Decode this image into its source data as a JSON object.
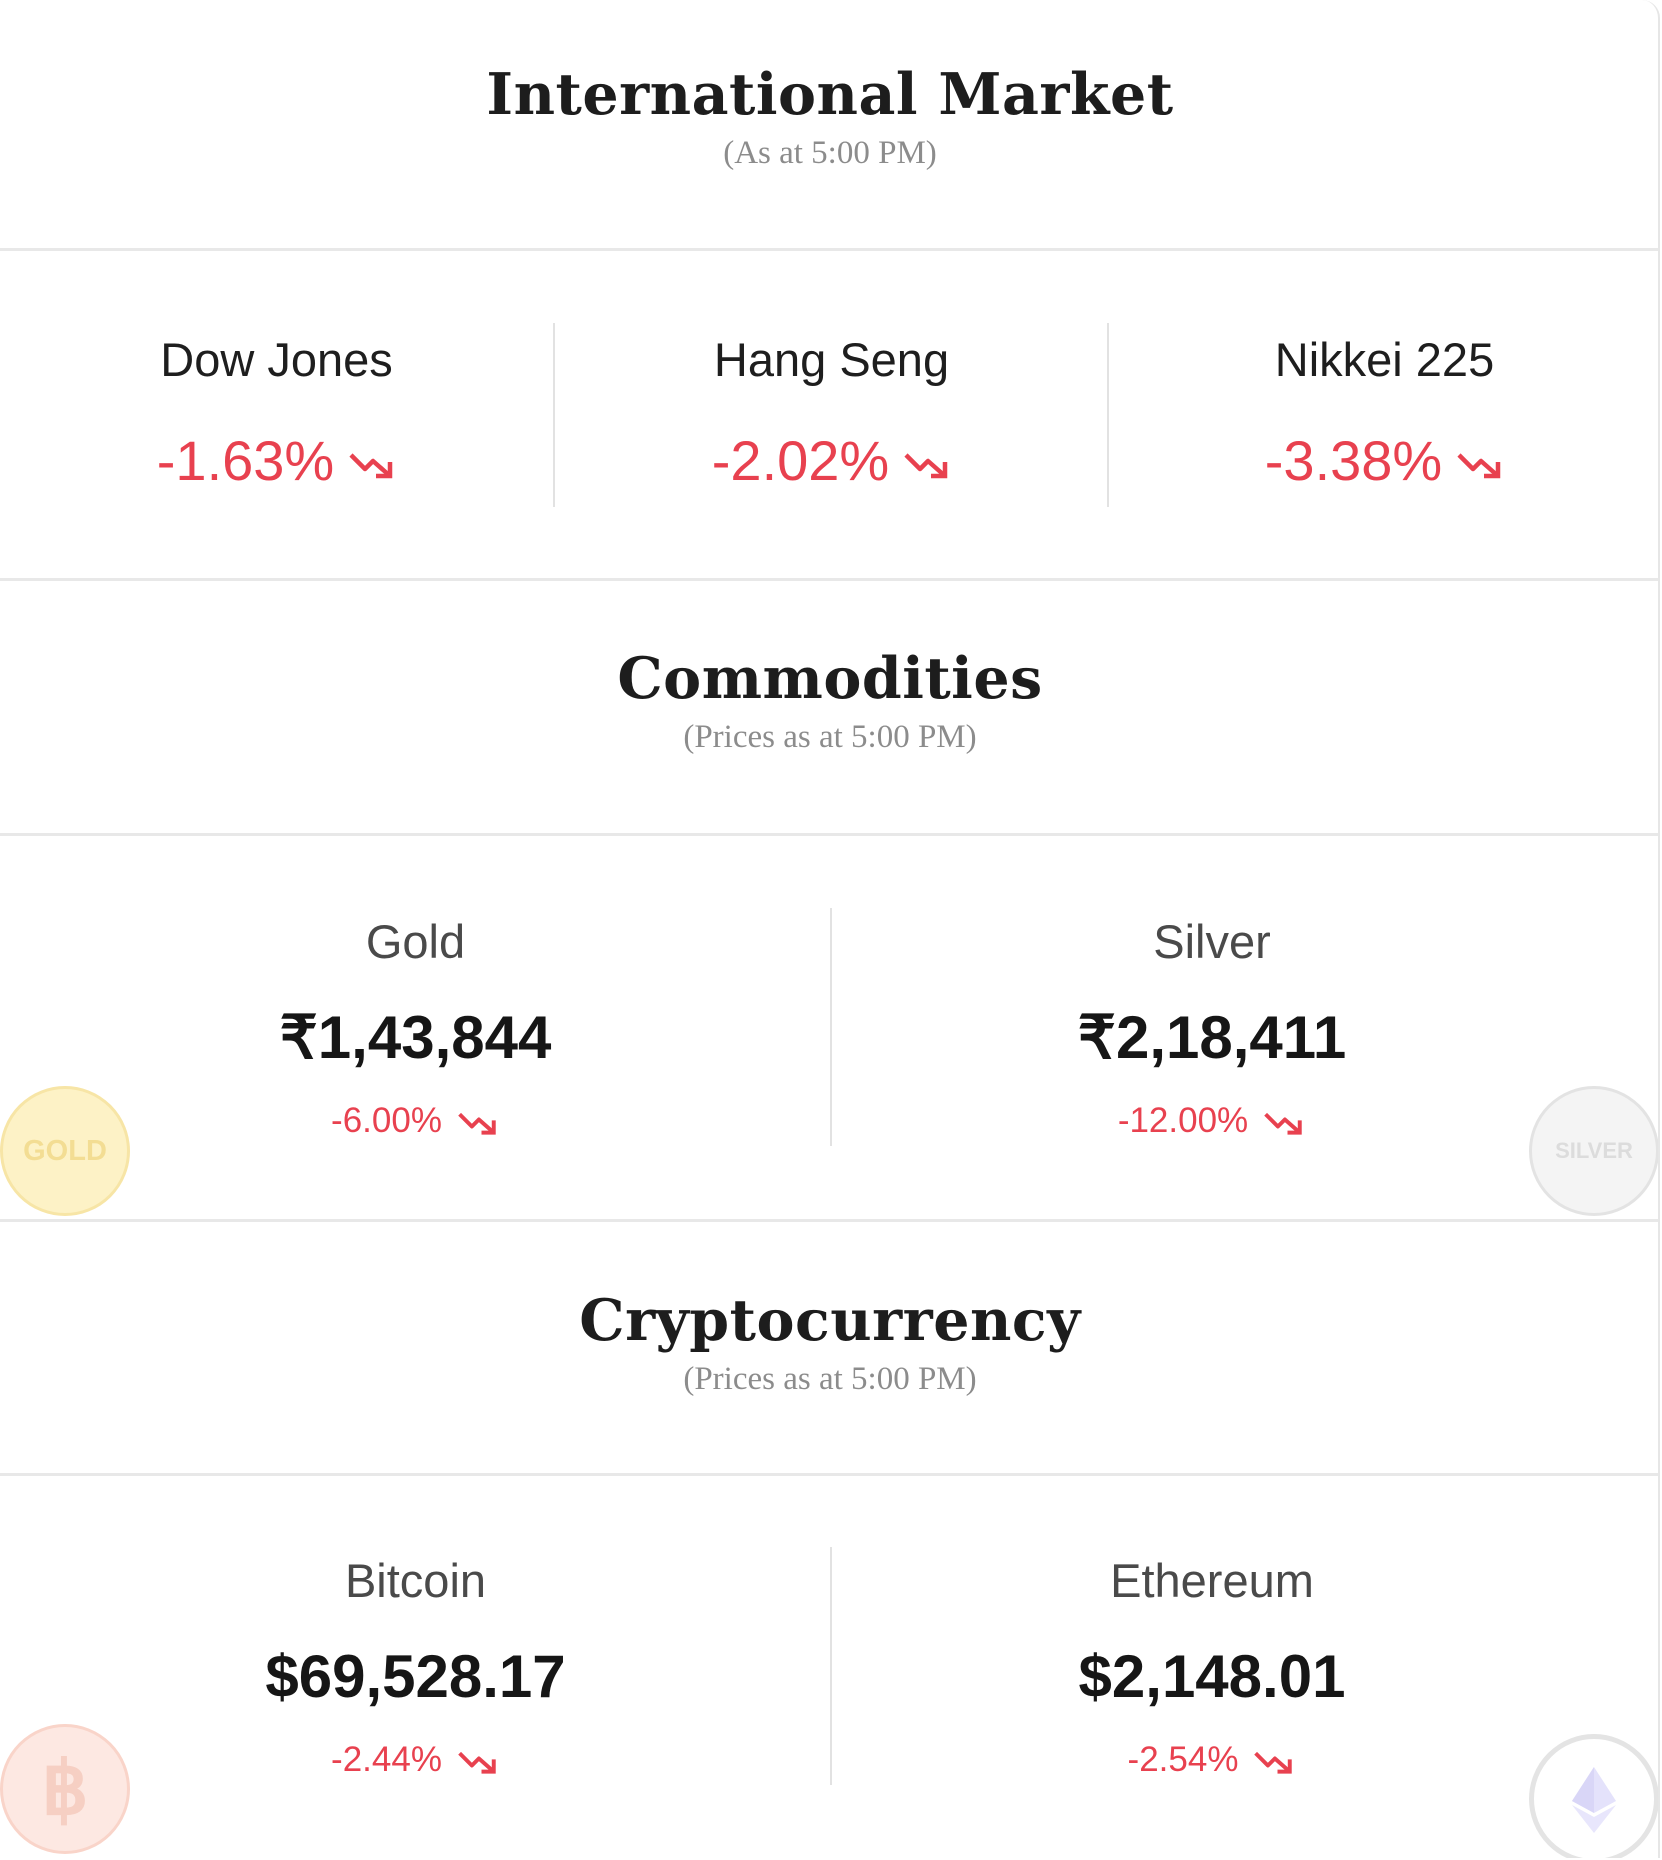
{
  "international": {
    "title": "International Market",
    "subtitle": "(As at 5:00 PM)",
    "indices": [
      {
        "name": "Dow Jones",
        "change": "-1.63%"
      },
      {
        "name": "Hang Seng",
        "change": "-2.02%"
      },
      {
        "name": "Nikkei 225",
        "change": "-3.38%"
      }
    ]
  },
  "commodities": {
    "title": "Commodities",
    "subtitle": "(Prices as at 5:00 PM)",
    "items": [
      {
        "name": "Gold",
        "price": "₹1,43,844",
        "change": "-6.00%",
        "coin_label": "GOLD"
      },
      {
        "name": "Silver",
        "price": "₹2,18,411",
        "change": "-12.00%",
        "coin_label": "SILVER"
      }
    ]
  },
  "crypto": {
    "title": "Cryptocurrency",
    "subtitle": "(Prices as at 5:00 PM)",
    "items": [
      {
        "name": "Bitcoin",
        "price": "$69,528.17",
        "change": "-2.44%",
        "coin_label": "฿"
      },
      {
        "name": "Ethereum",
        "price": "$2,148.01",
        "change": "-2.54%"
      }
    ]
  },
  "colors": {
    "negative": "#e8414f",
    "divider": "#e8e8e8",
    "title": "#1d1d1d",
    "subtitle": "#8c8c8c"
  },
  "icons": {
    "trend": "trend-down-icon",
    "gold_coin": "gold-coin-icon",
    "silver_coin": "silver-coin-icon",
    "bitcoin_coin": "bitcoin-coin-icon",
    "ethereum_coin": "ethereum-coin-icon"
  }
}
